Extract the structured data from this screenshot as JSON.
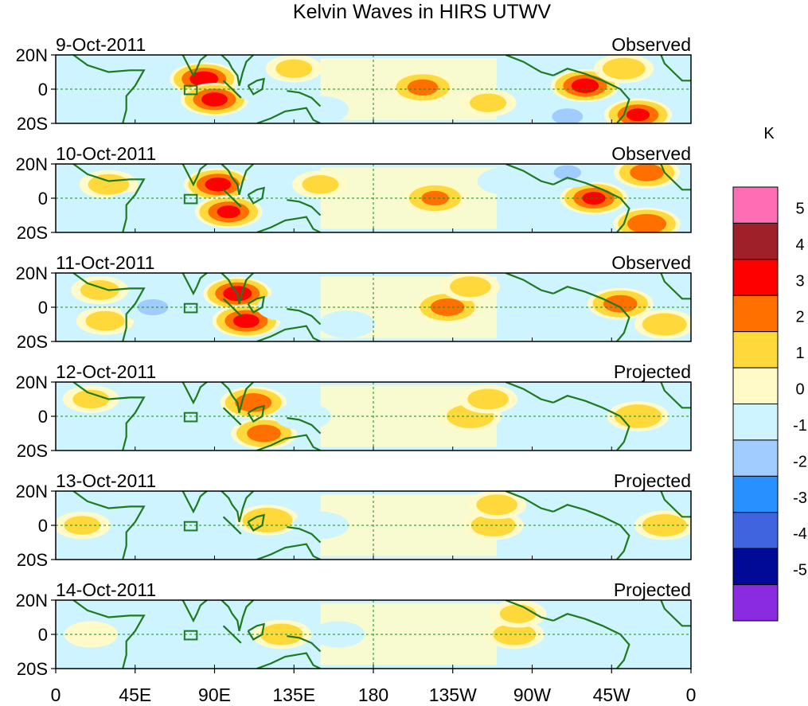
{
  "chart_data": {
    "type": "heatmap",
    "title": "Kelvin Waves in HIRS UTWV",
    "colorbar_unit": "K",
    "colorbar_levels": [
      "5",
      "4",
      "3",
      "2",
      "1",
      "0",
      "-1",
      "-2",
      "-3",
      "-4",
      "-5"
    ],
    "colorbar_colors": [
      "#ff6eb4",
      "#a0202a",
      "#ff0000",
      "#ff7000",
      "#ffd83c",
      "#fffac8",
      "#cdf4ff",
      "#a0ccff",
      "#2890ff",
      "#4064e0",
      "#000a96",
      "#8a2be2"
    ],
    "x_ticks": [
      "0",
      "45E",
      "90E",
      "135E",
      "180",
      "135W",
      "90W",
      "45W",
      "0"
    ],
    "y_ticks": [
      "20N",
      "0",
      "20S"
    ],
    "xlim": [
      0,
      360
    ],
    "ylim": [
      -20,
      20
    ],
    "panels": [
      {
        "date": "9-Oct-2011",
        "label": "Observed",
        "features": [
          {
            "lon": 42,
            "lat": 8,
            "value": -1.4
          },
          {
            "lon": 42,
            "lat": -10,
            "value": -1.2
          },
          {
            "lon": 62,
            "lat": 0,
            "value": -1.0
          },
          {
            "lon": 84,
            "lat": 6,
            "value": 3.4
          },
          {
            "lon": 90,
            "lat": -6,
            "value": 3.2
          },
          {
            "lon": 118,
            "lat": 0,
            "value": -1.0
          },
          {
            "lon": 135,
            "lat": 12,
            "value": 1.0
          },
          {
            "lon": 150,
            "lat": -12,
            "value": -1.0
          },
          {
            "lon": 208,
            "lat": 1,
            "value": 2.2
          },
          {
            "lon": 245,
            "lat": -8,
            "value": 1.0
          },
          {
            "lon": 275,
            "lat": 10,
            "value": -1.0
          },
          {
            "lon": 300,
            "lat": 2,
            "value": 3.3
          },
          {
            "lon": 322,
            "lat": 12,
            "value": 1.3
          },
          {
            "lon": 330,
            "lat": -15,
            "value": 3.0
          },
          {
            "lon": 290,
            "lat": -16,
            "value": -2.2
          }
        ]
      },
      {
        "date": "10-Oct-2011",
        "label": "Observed",
        "features": [
          {
            "lon": 30,
            "lat": 8,
            "value": 1.2
          },
          {
            "lon": 45,
            "lat": -5,
            "value": -1.6
          },
          {
            "lon": 70,
            "lat": 10,
            "value": -1.0
          },
          {
            "lon": 92,
            "lat": 8,
            "value": 3.2
          },
          {
            "lon": 98,
            "lat": -8,
            "value": 3.0
          },
          {
            "lon": 120,
            "lat": 5,
            "value": -1.2
          },
          {
            "lon": 150,
            "lat": 8,
            "value": 1.0
          },
          {
            "lon": 215,
            "lat": 0,
            "value": 2.0
          },
          {
            "lon": 255,
            "lat": 10,
            "value": -1.0
          },
          {
            "lon": 305,
            "lat": 0,
            "value": 3.0
          },
          {
            "lon": 335,
            "lat": 15,
            "value": 2.4
          },
          {
            "lon": 335,
            "lat": -15,
            "value": 2.8
          },
          {
            "lon": 290,
            "lat": 15,
            "value": -2.0
          }
        ]
      },
      {
        "date": "11-Oct-2011",
        "label": "Observed",
        "features": [
          {
            "lon": 25,
            "lat": 10,
            "value": 1.1
          },
          {
            "lon": 28,
            "lat": -8,
            "value": 1.1
          },
          {
            "lon": 55,
            "lat": 0,
            "value": -2.2
          },
          {
            "lon": 103,
            "lat": 8,
            "value": 3.4
          },
          {
            "lon": 108,
            "lat": -8,
            "value": 3.2
          },
          {
            "lon": 130,
            "lat": 0,
            "value": -1.0
          },
          {
            "lon": 165,
            "lat": -10,
            "value": -1.0
          },
          {
            "lon": 222,
            "lat": 0,
            "value": 2.4
          },
          {
            "lon": 235,
            "lat": 12,
            "value": 1.2
          },
          {
            "lon": 270,
            "lat": 0,
            "value": -1.0
          },
          {
            "lon": 320,
            "lat": 2,
            "value": 2.4
          },
          {
            "lon": 345,
            "lat": -10,
            "value": 1.4
          }
        ]
      },
      {
        "date": "12-Oct-2011",
        "label": "Projected",
        "features": [
          {
            "lon": 20,
            "lat": 10,
            "value": 1.0
          },
          {
            "lon": 62,
            "lat": 0,
            "value": -1.8
          },
          {
            "lon": 112,
            "lat": 8,
            "value": 2.6
          },
          {
            "lon": 118,
            "lat": -10,
            "value": 2.4
          },
          {
            "lon": 140,
            "lat": 0,
            "value": -1.0
          },
          {
            "lon": 235,
            "lat": 0,
            "value": 1.6
          },
          {
            "lon": 245,
            "lat": 10,
            "value": 1.2
          },
          {
            "lon": 290,
            "lat": 0,
            "value": -1.0
          },
          {
            "lon": 330,
            "lat": 0,
            "value": 1.6
          }
        ]
      },
      {
        "date": "13-Oct-2011",
        "label": "Projected",
        "features": [
          {
            "lon": 15,
            "lat": 0,
            "value": 1.0
          },
          {
            "lon": 75,
            "lat": 0,
            "value": -1.6
          },
          {
            "lon": 120,
            "lat": 3,
            "value": 1.8
          },
          {
            "lon": 150,
            "lat": 0,
            "value": -1.0
          },
          {
            "lon": 248,
            "lat": 0,
            "value": 1.4
          },
          {
            "lon": 250,
            "lat": 12,
            "value": 1.2
          },
          {
            "lon": 300,
            "lat": 0,
            "value": -1.0
          },
          {
            "lon": 345,
            "lat": 0,
            "value": 1.4
          }
        ]
      },
      {
        "date": "14-Oct-2011",
        "label": "Projected",
        "features": [
          {
            "lon": 20,
            "lat": 0,
            "value": 0.8
          },
          {
            "lon": 80,
            "lat": 0,
            "value": -1.2
          },
          {
            "lon": 128,
            "lat": 0,
            "value": 1.3
          },
          {
            "lon": 160,
            "lat": 0,
            "value": -0.8
          },
          {
            "lon": 260,
            "lat": 0,
            "value": 1.3
          },
          {
            "lon": 262,
            "lat": 12,
            "value": 1.0
          },
          {
            "lon": 310,
            "lat": 0,
            "value": -0.8
          }
        ]
      }
    ]
  }
}
